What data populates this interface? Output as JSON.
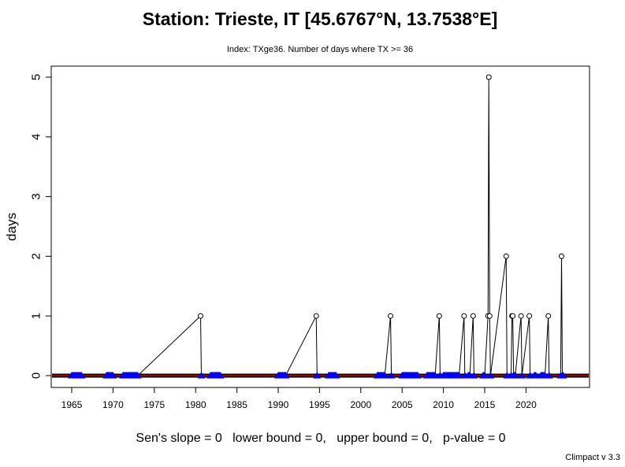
{
  "chart_data": {
    "type": "line",
    "title": "Station: Trieste, IT [45.6767°N, 13.7538°E]",
    "subtitle": "Index: TXge36. Number of days where TX >= 36",
    "xlabel": "",
    "ylabel": "days",
    "xlim": [
      1964,
      2025
    ],
    "ylim": [
      0,
      5
    ],
    "x_ticks": [
      "1965",
      "1970",
      "1975",
      "1980",
      "1985",
      "1990",
      "1995",
      "2000",
      "2005",
      "2010",
      "2015",
      "2020"
    ],
    "y_ticks": [
      "0",
      "1",
      "2",
      "3",
      "4",
      "5"
    ],
    "series": [
      {
        "x": [
          1965.0,
          1965.1,
          1965.2,
          1965.3,
          1965.4,
          1965.5,
          1965.6,
          1965.7,
          1965.8,
          1965.9,
          1966.0,
          1966.1,
          1966.2,
          1969.2,
          1969.3,
          1969.4,
          1969.5,
          1969.6,
          1969.7,
          1969.8,
          1969.9,
          1970.0,
          1971.2,
          1971.3,
          1971.4,
          1971.5,
          1971.6,
          1971.7,
          1971.8,
          1971.9,
          1972.0,
          1972.1,
          1972.2,
          1972.3,
          1972.4,
          1972.5,
          1972.6,
          1972.7,
          1972.8,
          1972.9,
          1973.0,
          1980.6,
          1980.7,
          1981.8,
          1981.9,
          1982.0,
          1982.1,
          1982.2,
          1982.3,
          1982.4,
          1982.5,
          1982.6,
          1982.7,
          1982.8,
          1982.9,
          1983.0,
          1990.0,
          1990.1,
          1990.2,
          1990.3,
          1990.4,
          1990.5,
          1990.6,
          1990.7,
          1990.8,
          1990.9,
          1994.6,
          1994.7,
          1996.1,
          1996.2,
          1996.3,
          1996.4,
          1996.5,
          1996.6,
          1996.7,
          1996.8,
          1996.9,
          1997.0,
          2002.0,
          2002.1,
          2002.2,
          2002.3,
          2002.4,
          2002.5,
          2002.6,
          2002.7,
          2002.8,
          2002.9,
          2003.6,
          2003.7,
          2005.0,
          2005.1,
          2005.2,
          2005.3,
          2005.4,
          2005.5,
          2005.6,
          2005.7,
          2005.8,
          2005.9,
          2006.0,
          2006.1,
          2006.2,
          2006.3,
          2006.4,
          2006.5,
          2006.6,
          2006.7,
          2006.8,
          2006.9,
          2008.0,
          2008.1,
          2008.2,
          2008.3,
          2008.4,
          2008.5,
          2008.6,
          2008.7,
          2008.8,
          2008.9,
          2009.0,
          2009.5,
          2009.6,
          2010.0,
          2010.1,
          2010.2,
          2010.3,
          2010.4,
          2010.5,
          2010.6,
          2010.7,
          2010.8,
          2010.9,
          2011.0,
          2011.1,
          2011.2,
          2011.3,
          2011.4,
          2011.5,
          2011.6,
          2011.7,
          2011.8,
          2011.9,
          2012.5,
          2012.6,
          2013.0,
          2013.1,
          2013.2,
          2013.6,
          2013.7,
          2014.8,
          2014.9,
          2015.0,
          2015.4,
          2015.5,
          2015.6,
          2015.7,
          2017.6,
          2017.7,
          2018.2,
          2018.3,
          2018.4,
          2018.5,
          2018.6,
          2018.7,
          2019.4,
          2019.5,
          2020.4,
          2020.5,
          2021.0,
          2021.1,
          2021.2,
          2021.8,
          2021.9,
          2022.0,
          2022.1,
          2022.2,
          2022.3,
          2022.7,
          2022.8,
          2024.2,
          2024.3,
          2024.4,
          2024.5
        ],
        "y": [
          0,
          0,
          0,
          0,
          0,
          0,
          0,
          0,
          0,
          0,
          0,
          0,
          0,
          0,
          0,
          0,
          0,
          0,
          0,
          0,
          0,
          0,
          0,
          0,
          0,
          0,
          0,
          0,
          0,
          0,
          0,
          0,
          0,
          0,
          0,
          0,
          0,
          0,
          0,
          0,
          0,
          1,
          0,
          0,
          0,
          0,
          0,
          0,
          0,
          0,
          0,
          0,
          0,
          0,
          0,
          0,
          0,
          0,
          0,
          0,
          0,
          0,
          0,
          0,
          0,
          0,
          1,
          0,
          0,
          0,
          0,
          0,
          0,
          0,
          0,
          0,
          0,
          0,
          0,
          0,
          0,
          0,
          0,
          0,
          0,
          0,
          0,
          0,
          1,
          0,
          0,
          0,
          0,
          0,
          0,
          0,
          0,
          0,
          0,
          0,
          0,
          0,
          0,
          0,
          0,
          0,
          0,
          0,
          0,
          0,
          0,
          0,
          0,
          0,
          0,
          0,
          0,
          0,
          0,
          0,
          0,
          1,
          0,
          0,
          0,
          0,
          0,
          0,
          0,
          0,
          0,
          0,
          0,
          0,
          0,
          0,
          0,
          0,
          0,
          0,
          0,
          0,
          0,
          1,
          0,
          0,
          0,
          0,
          1,
          0,
          0,
          0,
          0,
          1,
          5,
          1,
          0,
          2,
          0,
          0,
          1,
          1,
          0,
          0,
          0,
          1,
          0,
          1,
          0,
          0,
          0,
          0,
          0,
          0,
          0,
          0,
          0,
          0,
          1,
          0,
          0,
          2,
          0,
          0
        ]
      }
    ],
    "trend_line_y": 0,
    "trend_color": "#cc0000",
    "marker_color": "#0000ff",
    "grid": false,
    "legend": "none"
  },
  "footer_text": "Sen's slope = 0   lower bound = 0,   upper bound = 0,   p-value = 0",
  "credit_text": "Climpact v 3.3"
}
